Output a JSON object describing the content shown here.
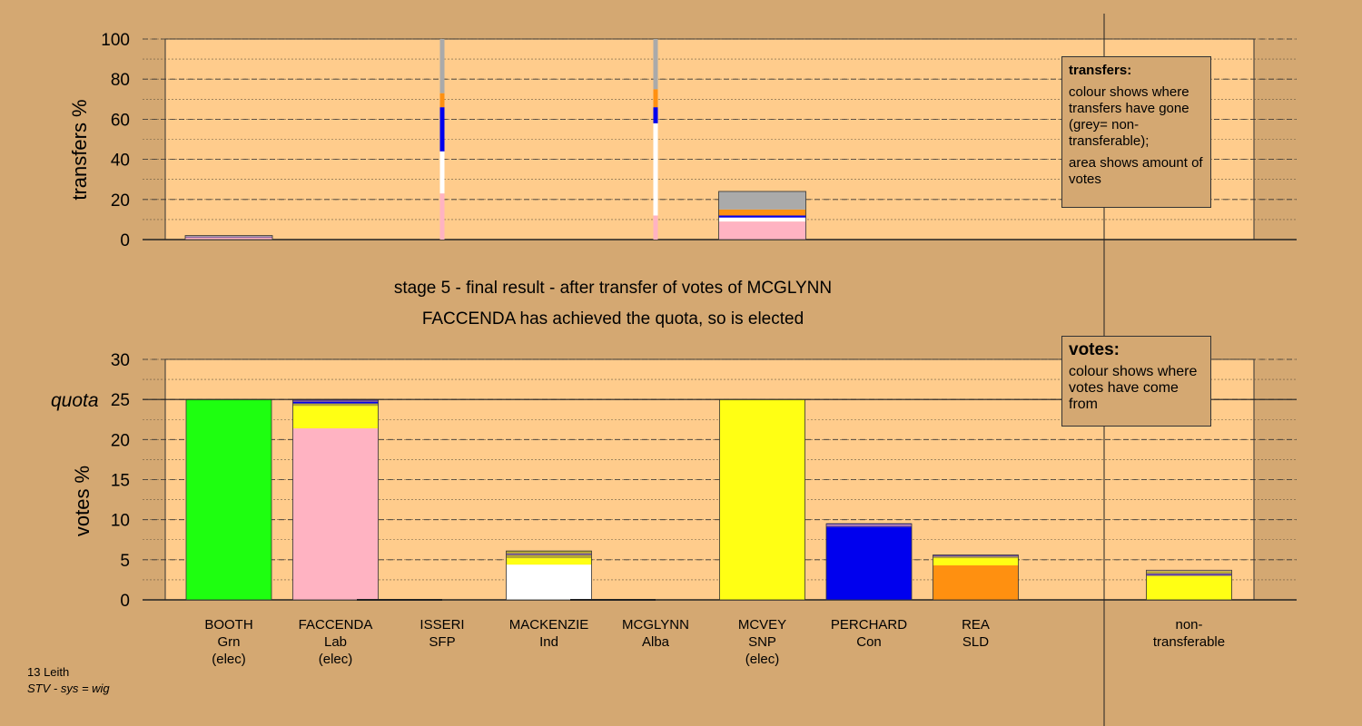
{
  "stage_title": "stage 5 - final result - after transfer of votes of MCGLYNN",
  "stage_subtitle": "FACCENDA has achieved the quota, so is elected",
  "footer": {
    "area": "13 Leith",
    "system": "STV - sys = wig"
  },
  "legends": {
    "transfers": {
      "title": "transfers:",
      "line1": "colour shows where transfers have gone (grey= non-transferable);",
      "line2": "area shows amount of votes"
    },
    "votes": {
      "title": "votes:",
      "line1": "colour shows where votes have come from"
    }
  },
  "colors": {
    "background": "#d4a872",
    "plot": "#ffcc8c",
    "Grn": "#1eff10",
    "Lab": "#ffb3c2",
    "Ind": "#ffffff",
    "SNP": "#ffff14",
    "Con": "#0000ee",
    "SLD": "#ff9010",
    "olive": "#b3a833",
    "nontransferable": "#aaaaaa",
    "purple": "#6a4aa0"
  },
  "chart_data": [
    {
      "type": "bar",
      "name": "transfers",
      "ylabel": "transfers %",
      "ylim": [
        0,
        100
      ],
      "yticks": [
        0,
        20,
        40,
        60,
        80,
        100
      ],
      "bars": [
        {
          "col": 0,
          "width": "wide",
          "segments": [
            {
              "color": "Lab",
              "value": 1
            },
            {
              "color": "purple",
              "value": 0.5
            },
            {
              "color": "nontransferable",
              "value": 0.5
            }
          ]
        },
        {
          "col": 2,
          "width": "thin",
          "segments": [
            {
              "color": "Lab",
              "value": 23
            },
            {
              "color": "Ind",
              "value": 21
            },
            {
              "color": "Con",
              "value": 22
            },
            {
              "color": "SLD",
              "value": 7
            },
            {
              "color": "nontransferable",
              "value": 27
            }
          ]
        },
        {
          "col": 4,
          "width": "thin",
          "segments": [
            {
              "color": "Lab",
              "value": 12
            },
            {
              "color": "Ind",
              "value": 46
            },
            {
              "color": "Con",
              "value": 8
            },
            {
              "color": "SLD",
              "value": 9
            },
            {
              "color": "nontransferable",
              "value": 25
            }
          ]
        },
        {
          "col": 5,
          "width": "wide",
          "segments": [
            {
              "color": "Lab",
              "value": 9
            },
            {
              "color": "Ind",
              "value": 2
            },
            {
              "color": "Con",
              "value": 1
            },
            {
              "color": "SLD",
              "value": 3
            },
            {
              "color": "nontransferable",
              "value": 9
            }
          ]
        }
      ]
    },
    {
      "type": "bar",
      "name": "votes",
      "ylabel": "votes %",
      "ylim": [
        0,
        30
      ],
      "yticks": [
        0,
        5,
        10,
        15,
        20,
        25,
        30
      ],
      "quota": 25,
      "quota_label": "quota",
      "categories": [
        {
          "name": "BOOTH",
          "party": "Grn",
          "note": "(elec)"
        },
        {
          "name": "FACCENDA",
          "party": "Lab",
          "note": "(elec)"
        },
        {
          "name": "ISSERI",
          "party": "SFP",
          "note": ""
        },
        {
          "name": "MACKENZIE",
          "party": "Ind",
          "note": ""
        },
        {
          "name": "MCGLYNN",
          "party": "Alba",
          "note": ""
        },
        {
          "name": "MCVEY",
          "party": "SNP",
          "note": "(elec)"
        },
        {
          "name": "PERCHARD",
          "party": "Con",
          "note": ""
        },
        {
          "name": "REA",
          "party": "SLD",
          "note": ""
        },
        {
          "name": "non-",
          "party": "transferable",
          "note": ""
        }
      ],
      "bars": [
        {
          "col": 0,
          "segments": [
            {
              "color": "Grn",
              "value": 25
            }
          ]
        },
        {
          "col": 1,
          "segments": [
            {
              "color": "Lab",
              "value": 21.4
            },
            {
              "color": "SNP",
              "value": 2.8
            },
            {
              "color": "olive",
              "value": 0.3
            },
            {
              "color": "Con",
              "value": 0.2
            },
            {
              "color": "purple",
              "value": 0.3
            }
          ]
        },
        {
          "col": 2,
          "segments": []
        },
        {
          "col": 3,
          "segments": [
            {
              "color": "Ind",
              "value": 4.4
            },
            {
              "color": "SNP",
              "value": 0.8
            },
            {
              "color": "olive",
              "value": 0.4
            },
            {
              "color": "purple",
              "value": 0.2
            },
            {
              "color": "olive",
              "value": 0.3
            }
          ]
        },
        {
          "col": 4,
          "segments": []
        },
        {
          "col": 5,
          "segments": [
            {
              "color": "SNP",
              "value": 25
            }
          ]
        },
        {
          "col": 6,
          "segments": [
            {
              "color": "Con",
              "value": 9.1
            },
            {
              "color": "purple",
              "value": 0.2
            },
            {
              "color": "Lab",
              "value": 0.1
            },
            {
              "color": "Con",
              "value": 0.1
            }
          ]
        },
        {
          "col": 7,
          "segments": [
            {
              "color": "SLD",
              "value": 4.3
            },
            {
              "color": "SNP",
              "value": 0.9
            },
            {
              "color": "olive",
              "value": 0.2
            },
            {
              "color": "purple",
              "value": 0.2
            }
          ]
        },
        {
          "col": 9,
          "segments": [
            {
              "color": "SNP",
              "value": 3
            },
            {
              "color": "purple",
              "value": 0.3
            },
            {
              "color": "olive",
              "value": 0.3
            },
            {
              "color": "Lab",
              "value": 0.1
            }
          ]
        }
      ]
    }
  ]
}
